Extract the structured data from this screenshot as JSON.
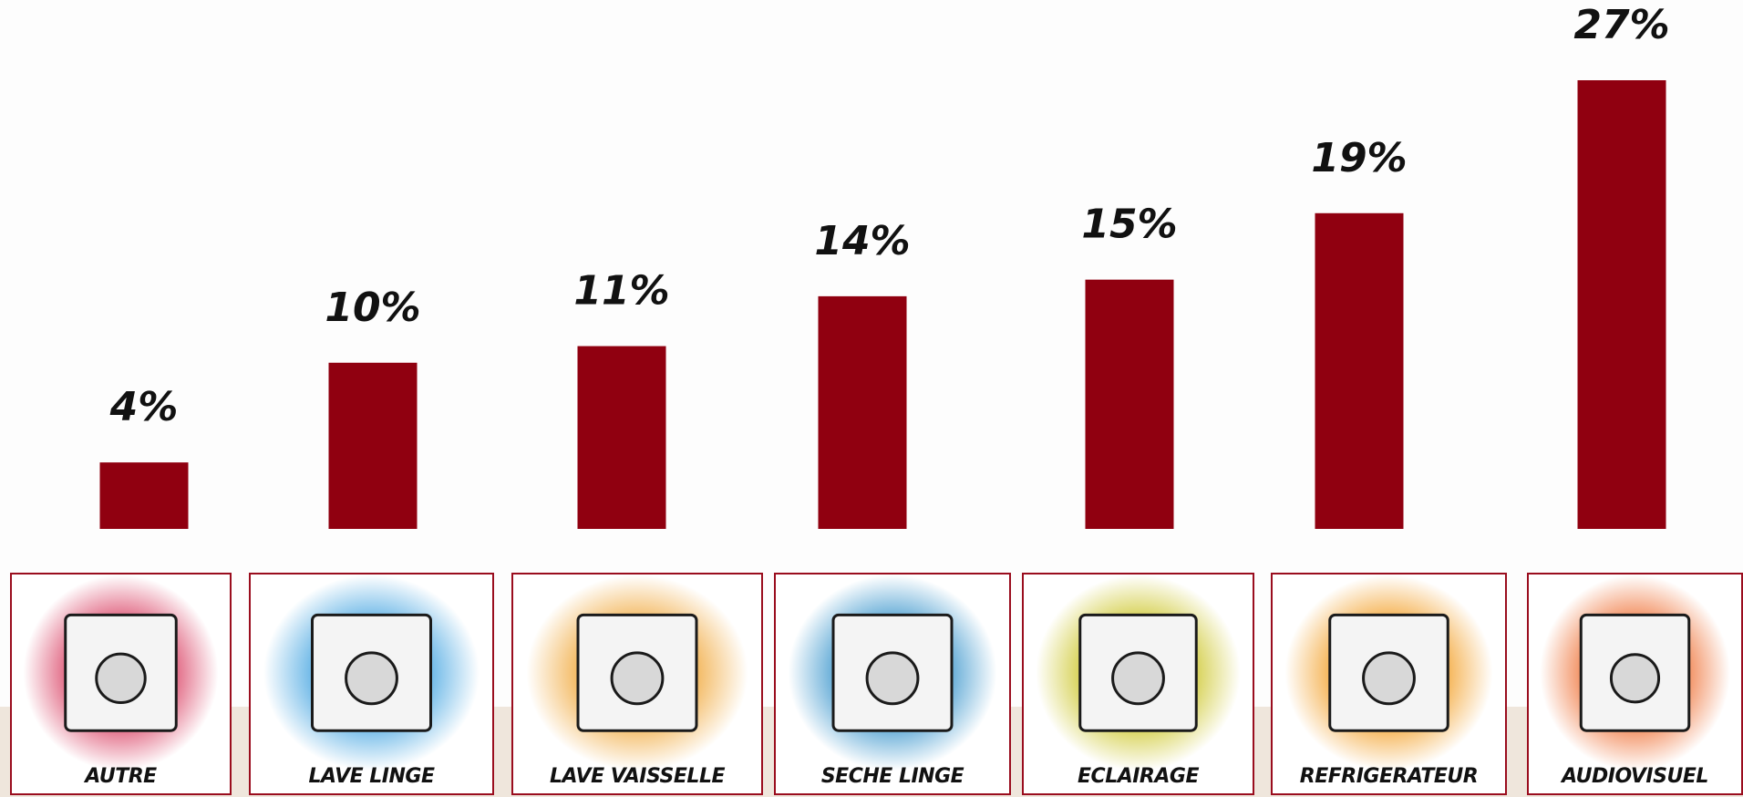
{
  "chart_data": {
    "type": "bar",
    "categories": [
      "AUTRE",
      "LAVE LINGE",
      "LAVE VAISSELLE",
      "SECHE LINGE",
      "ECLAIRAGE",
      "REFRIGERATEUR",
      "AUDIOVISUEL"
    ],
    "values": [
      4,
      10,
      11,
      14,
      15,
      19,
      27
    ],
    "value_labels": [
      "4%",
      "10%",
      "11%",
      "14%",
      "15%",
      "19%",
      "27%"
    ],
    "bar_color": "#900010",
    "ylim": [
      0,
      27
    ],
    "grid": false,
    "legend": "none"
  },
  "cards": [
    {
      "label": "AUTRE",
      "icon": "tv-cabinet-christmas-tree-icon",
      "halo": "#d7355a"
    },
    {
      "label": "LAVE LINGE",
      "icon": "washing-machine-icon",
      "halo": "#3fa2e0"
    },
    {
      "label": "LAVE VAISSELLE",
      "icon": "dishwasher-icon",
      "halo": "#f0a636"
    },
    {
      "label": "SECHE LINGE",
      "icon": "clothes-dryer-icon",
      "halo": "#2e8fc9"
    },
    {
      "label": "ECLAIRAGE",
      "icon": "light-bulb-icon",
      "halo": "#c9c21b"
    },
    {
      "label": "REFRIGERATEUR",
      "icon": "refrigerator-icon",
      "halo": "#f29a1b"
    },
    {
      "label": "AUDIOVISUEL",
      "icon": "tv-stereo-icon",
      "halo": "#ee6a2c"
    }
  ],
  "colors": {
    "card_border": "#9a0d1e",
    "background": "#fdfdfd",
    "floor": "#efe6dc"
  }
}
